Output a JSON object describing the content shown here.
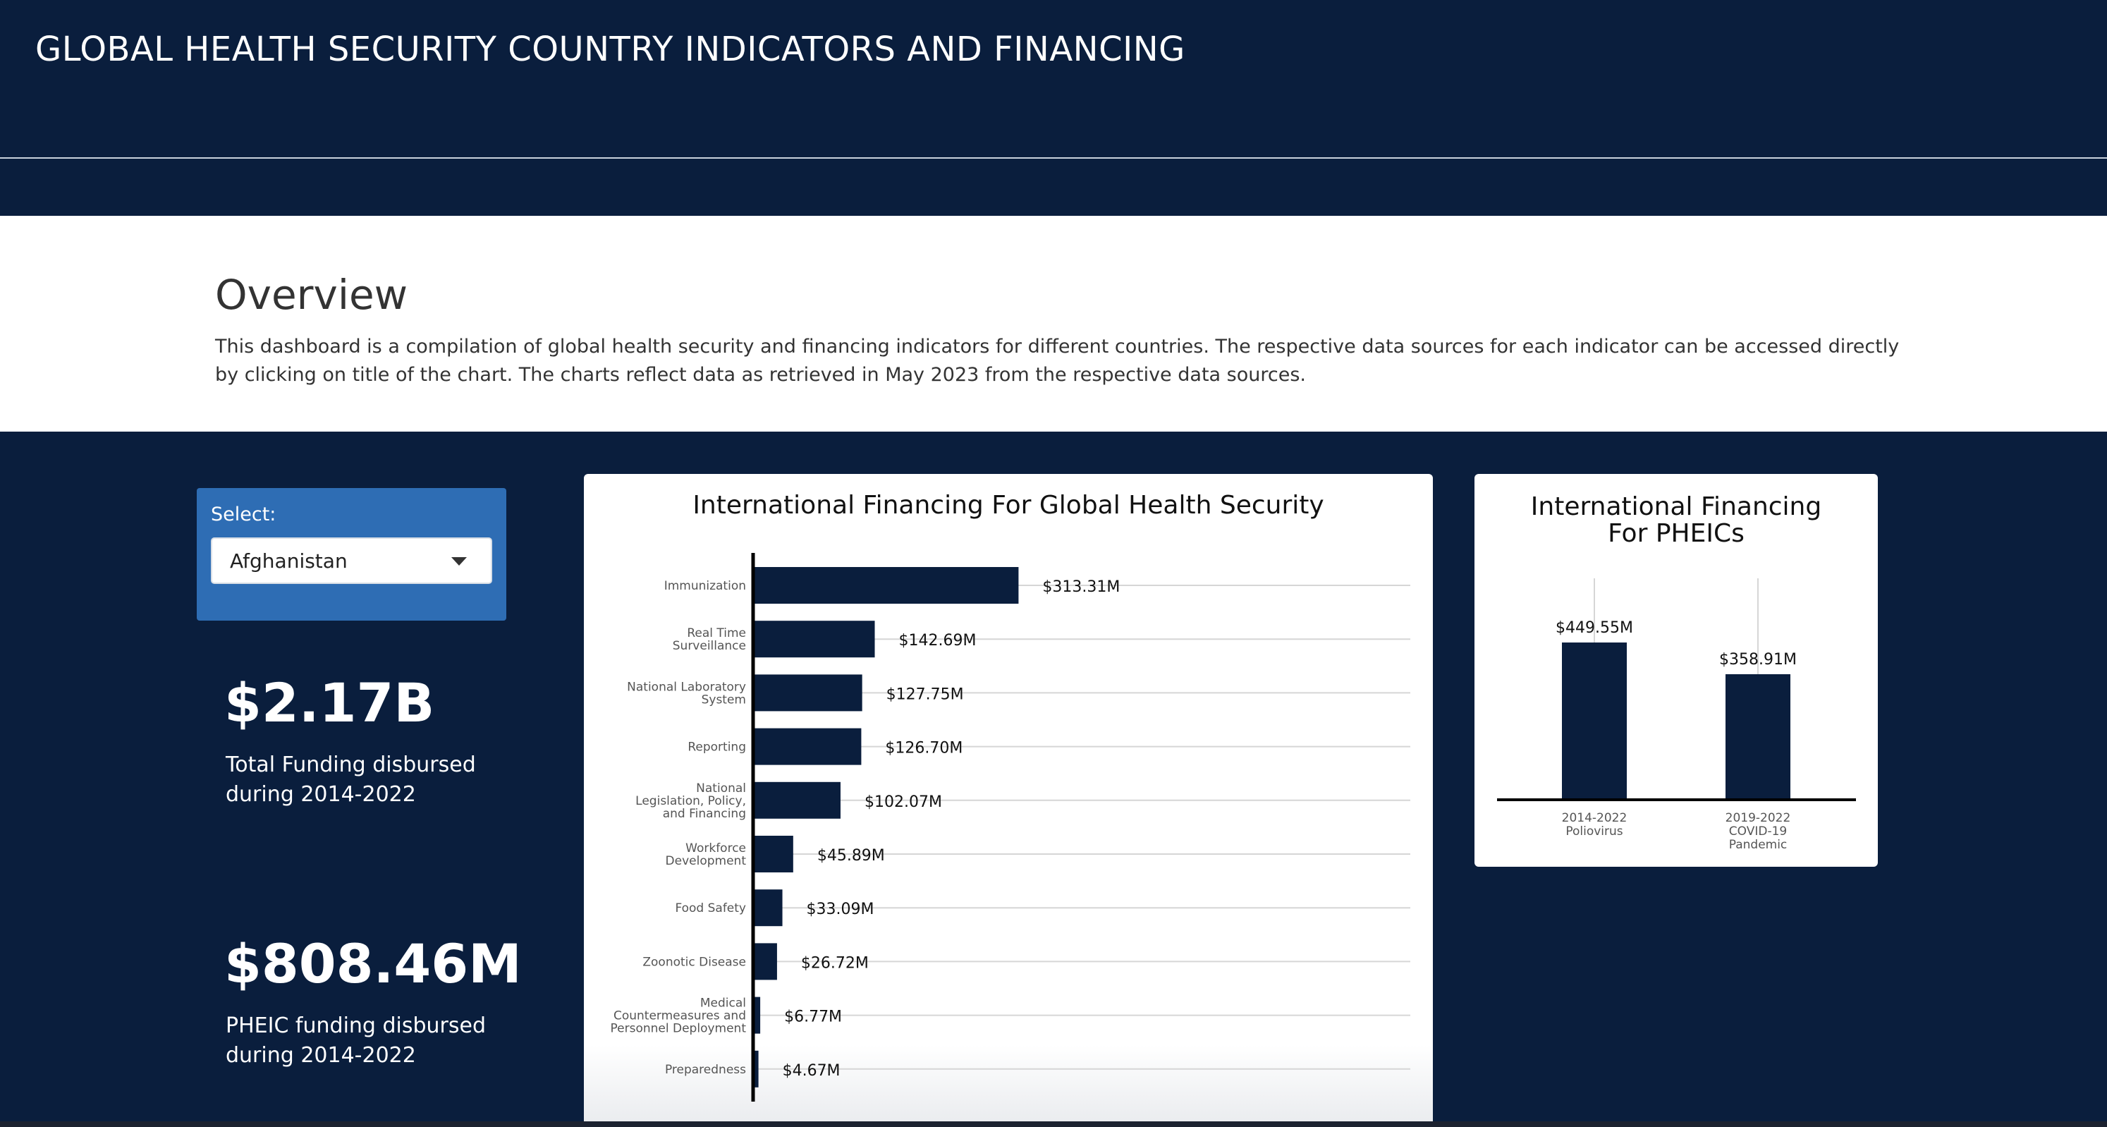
{
  "header": {
    "title": "GLOBAL HEALTH SECURITY COUNTRY INDICATORS AND FINANCING"
  },
  "overview": {
    "heading": "Overview",
    "text": "This dashboard is a compilation of global health security and financing indicators for different countries. The respective data sources for each indicator can be accessed directly by clicking on title of the chart. The charts reflect data as retrieved in May 2023 from the respective data sources."
  },
  "selector": {
    "label": "Select:",
    "value": "Afghanistan"
  },
  "stats": [
    {
      "value": "$2.17B",
      "label": "Total Funding disbursed during 2014-2022"
    },
    {
      "value": "$808.46M",
      "label": "PHEIC funding disbursed during 2014-2022"
    }
  ],
  "colors": {
    "navy": "#0a1e3d",
    "select_panel": "#2e6db4",
    "bar": "#0a1e3d"
  },
  "chart_data": [
    {
      "type": "bar",
      "orientation": "horizontal",
      "title": "International Financing For Global Health Security",
      "categories": [
        "Immunization",
        "Real Time Surveillance",
        "National Laboratory System",
        "Reporting",
        "National Legislation, Policy, and Financing",
        "Workforce Development",
        "Food Safety",
        "Zoonotic Disease",
        "Medical Countermeasures and Personnel Deployment",
        "Preparedness"
      ],
      "category_lines": [
        [
          "Immunization"
        ],
        [
          "Real Time",
          "Surveillance"
        ],
        [
          "National Laboratory",
          "System"
        ],
        [
          "Reporting"
        ],
        [
          "National",
          "Legislation, Policy,",
          "and Financing"
        ],
        [
          "Workforce",
          "Development"
        ],
        [
          "Food Safety"
        ],
        [
          "Zoonotic Disease"
        ],
        [
          "Medical",
          "Countermeasures and",
          "Personnel Deployment"
        ],
        [
          "Preparedness"
        ]
      ],
      "values": [
        313.31,
        142.69,
        127.75,
        126.7,
        102.07,
        45.89,
        33.09,
        26.72,
        6.77,
        4.67
      ],
      "value_labels": [
        "$313.31M",
        "$142.69M",
        "$127.75M",
        "$126.70M",
        "$102.07M",
        "$45.89M",
        "$33.09M",
        "$26.72M",
        "$6.77M",
        "$4.67M"
      ],
      "unit": "USD millions",
      "grid": true
    },
    {
      "type": "bar",
      "orientation": "vertical",
      "title": "International Financing For PHEICs",
      "categories": [
        "2014-2022 Poliovirus",
        "2019-2022 COVID-19 Pandemic"
      ],
      "category_lines": [
        [
          "2014-2022",
          "Poliovirus"
        ],
        [
          "2019-2022",
          "COVID-19",
          "Pandemic"
        ]
      ],
      "values": [
        449.55,
        358.91
      ],
      "value_labels": [
        "$449.55M",
        "$358.91M"
      ],
      "unit": "USD millions",
      "grid": true
    }
  ]
}
